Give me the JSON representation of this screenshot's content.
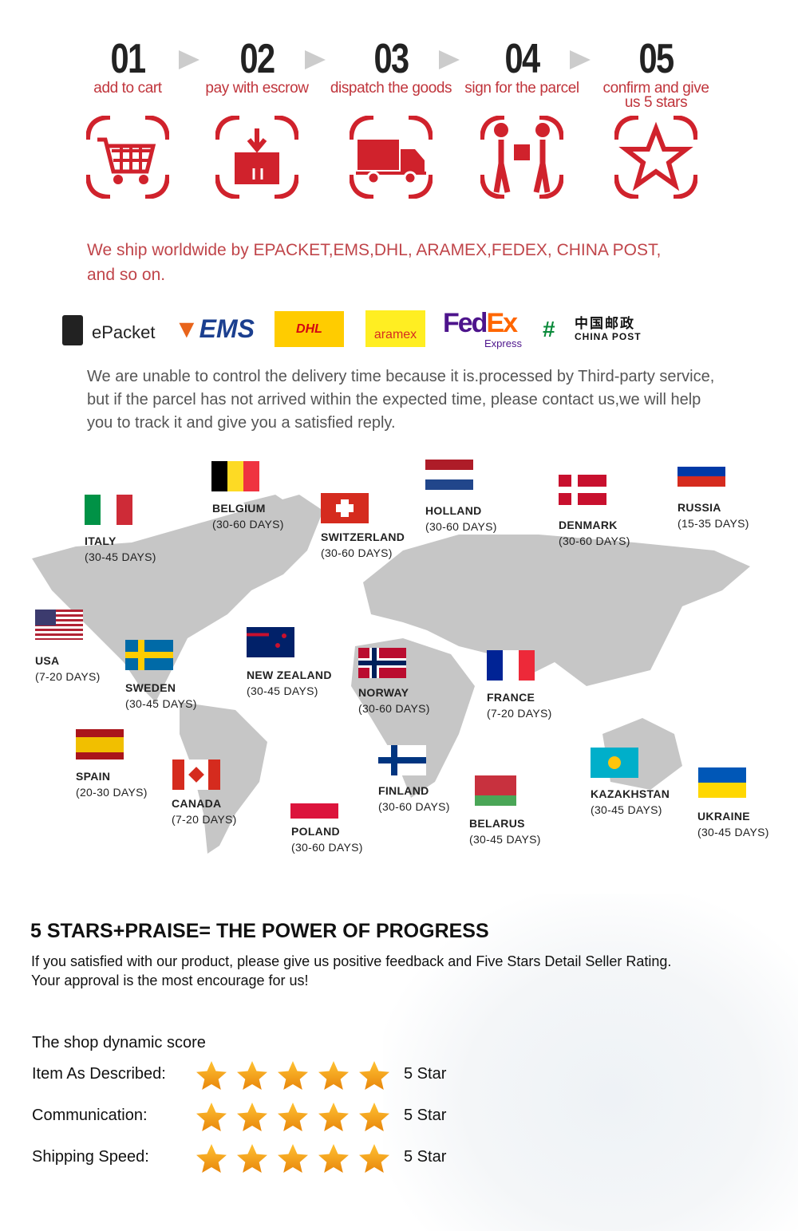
{
  "steps": [
    {
      "number": "01",
      "label": "add to cart",
      "icon": "cart-icon"
    },
    {
      "number": "02",
      "label": "pay with escrow",
      "icon": "box-icon"
    },
    {
      "number": "03",
      "label": "dispatch the goods",
      "icon": "truck-icon"
    },
    {
      "number": "04",
      "label": "sign for the parcel",
      "icon": "handover-icon"
    },
    {
      "number": "05",
      "label": "confirm and give us 5 stars",
      "icon": "star-icon"
    }
  ],
  "shipping": {
    "intro": "We ship worldwide by ",
    "carriers_text": "EPACKET,EMS,DHL, ARAMEX,FEDEX, CHINA POST,",
    "tail": "and so on.",
    "logos": {
      "epacket": "ePacket",
      "ems": "EMS",
      "dhl": "DHL",
      "aramex": "aramex",
      "fedex_a": "Fed",
      "fedex_b": "Ex",
      "fedex_c": "Express",
      "chinapost_cn": "中国邮政",
      "chinapost_en": "CHINA POST"
    },
    "note": "We are unable to control the delivery time because it is.processed by Third-party service, but if the parcel has not arrived within the expected time, please contact us,we will help you to track it and give you a satisfied reply."
  },
  "countries": [
    {
      "name": "ITALY",
      "days": "(30-45 DAYS)"
    },
    {
      "name": "BELGIUM",
      "days": "(30-60 DAYS)"
    },
    {
      "name": "SWITZERLAND",
      "days": "(30-60 DAYS)"
    },
    {
      "name": "HOLLAND",
      "days": "(30-60 DAYS)"
    },
    {
      "name": "DENMARK",
      "days": "(30-60 DAYS)"
    },
    {
      "name": "RUSSIA",
      "days": "(15-35 DAYS)"
    },
    {
      "name": "USA",
      "days": "(7-20 DAYS)"
    },
    {
      "name": "SWEDEN",
      "days": "(30-45 DAYS)"
    },
    {
      "name": "NEW ZEALAND",
      "days": "(30-45 DAYS)"
    },
    {
      "name": "NORWAY",
      "days": "(30-60 DAYS)"
    },
    {
      "name": "FRANCE",
      "days": "(7-20 DAYS)"
    },
    {
      "name": "SPAIN",
      "days": "(20-30 DAYS)"
    },
    {
      "name": "CANADA",
      "days": "(7-20 DAYS)"
    },
    {
      "name": "POLAND",
      "days": "(30-60 DAYS)"
    },
    {
      "name": "FINLAND",
      "days": "(30-60 DAYS)"
    },
    {
      "name": "BELARUS",
      "days": "(30-45 DAYS)"
    },
    {
      "name": "KAZAKHSTAN",
      "days": "(30-45 DAYS)"
    },
    {
      "name": "UKRAINE",
      "days": "(30-45 DAYS)"
    }
  ],
  "praise": {
    "heading": "5 STARS+PRAISE= THE POWER OF PROGRESS",
    "line1": "If you satisfied with our product, please give us positive feedback and Five Stars Detail Seller Rating.",
    "line2": "Your approval is the most encourage for us!",
    "score_title": "The shop dynamic score",
    "rows": [
      {
        "label": "Item As Described:",
        "stars": 5,
        "value": "5 Star"
      },
      {
        "label": "Communication:",
        "stars": 5,
        "value": "5 Star"
      },
      {
        "label": "Shipping Speed:",
        "stars": 5,
        "value": "5 Star"
      }
    ]
  },
  "colors": {
    "accent": "#c0353c",
    "star": "#f5a623",
    "map": "#c4c4c4"
  }
}
